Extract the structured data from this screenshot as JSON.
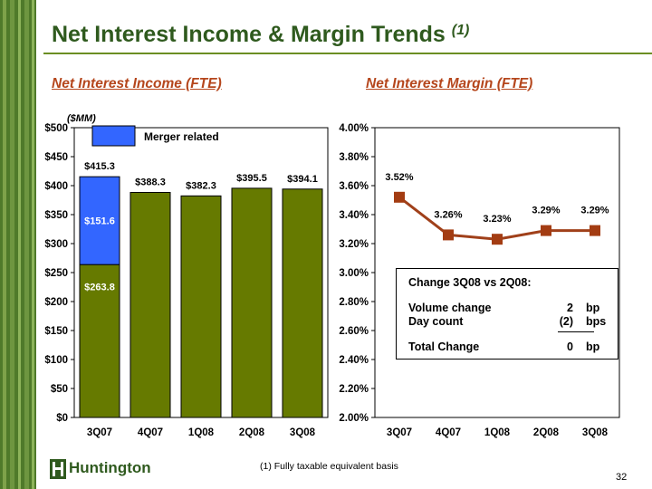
{
  "title": "Net Interest Income & Margin Trends",
  "title_footnote_ref": "(1)",
  "subtitle_left": "Net Interest Income (FTE)",
  "subtitle_right": "Net Interest Margin (FTE)",
  "chart_data": [
    {
      "type": "bar",
      "title": "Net Interest Income (FTE)",
      "unit_label": "($MM)",
      "categories": [
        "3Q07",
        "4Q07",
        "1Q08",
        "2Q08",
        "3Q08"
      ],
      "series": [
        {
          "name": "",
          "values": [
            263.8,
            388.3,
            382.3,
            395.5,
            394.1
          ],
          "color": "#667a00"
        },
        {
          "name": "Merger related",
          "values": [
            151.6,
            0,
            0,
            0,
            0
          ],
          "color": "#3366ff"
        }
      ],
      "segment_labels": [
        "$263.8",
        "$151.6"
      ],
      "total_labels": [
        "$415.3",
        "$388.3",
        "$382.3",
        "$395.5",
        "$394.1"
      ],
      "ylim": [
        0,
        500
      ],
      "ytick_values": [
        0,
        50,
        100,
        150,
        200,
        250,
        300,
        350,
        400,
        450,
        500
      ],
      "ytick_labels": [
        "$0",
        "$50",
        "$100",
        "$150",
        "$200",
        "$250",
        "$300",
        "$350",
        "$400",
        "$450",
        "$500"
      ],
      "stacked": true,
      "legend_position": "top-left"
    },
    {
      "type": "line",
      "title": "Net Interest Margin (FTE)",
      "categories": [
        "3Q07",
        "4Q07",
        "1Q08",
        "2Q08",
        "3Q08"
      ],
      "series": [
        {
          "name": "",
          "values": [
            3.52,
            3.26,
            3.23,
            3.29,
            3.29
          ],
          "color": "#a0401a",
          "marker_color": "#a33c12"
        }
      ],
      "data_labels": [
        "3.52%",
        "3.26%",
        "3.23%",
        "3.29%",
        "3.29%"
      ],
      "ylim": [
        2.0,
        4.0
      ],
      "ytick_values": [
        2.0,
        2.2,
        2.4,
        2.6,
        2.8,
        3.0,
        3.2,
        3.4,
        3.6,
        3.8,
        4.0
      ],
      "ytick_labels": [
        "2.00%",
        "2.20%",
        "2.40%",
        "2.60%",
        "2.80%",
        "3.00%",
        "3.20%",
        "3.40%",
        "3.60%",
        "3.80%",
        "4.00%"
      ]
    }
  ],
  "change_box": {
    "title": "Change 3Q08  vs 2Q08:",
    "rows": [
      {
        "label": "Volume change",
        "value": "2",
        "unit": "bp"
      },
      {
        "label": "Day count",
        "value": "(2)",
        "unit": "bps"
      }
    ],
    "total": {
      "label": "Total Change",
      "value": "0",
      "unit": "bp"
    }
  },
  "logo_text": "Huntington",
  "footnote": "(1)  Fully taxable equivalent basis",
  "page_number": "32"
}
